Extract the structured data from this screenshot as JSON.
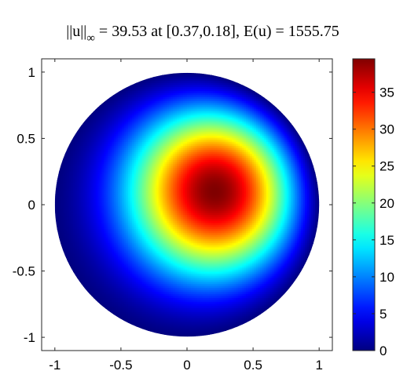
{
  "chart_data": {
    "type": "heatmap",
    "title": {
      "norm_symbol": "||u||",
      "norm_subscript": "∞",
      "rest": " = 39.53 at [0.37,0.18], E(u) = 1555.75"
    },
    "max_value": 39.53,
    "max_location": [
      0.37,
      0.18
    ],
    "energy": 1555.75,
    "domain": "unit disk",
    "colormap": "jet",
    "xlim": [
      -1.1,
      1.1
    ],
    "ylim": [
      -1.1,
      1.1
    ],
    "x_ticks": [
      "-1",
      "-0.5",
      "0",
      "0.5",
      "1"
    ],
    "x_tick_values": [
      -1,
      -0.5,
      0,
      0.5,
      1
    ],
    "y_ticks": [
      "1",
      "0.5",
      "0",
      "-0.5",
      "-1"
    ],
    "y_tick_values": [
      1,
      0.5,
      0,
      -0.5,
      -1
    ],
    "colorbar": {
      "range": [
        0,
        39.53
      ],
      "ticks": [
        "0",
        "5",
        "10",
        "15",
        "20",
        "25",
        "30",
        "35"
      ],
      "tick_values": [
        0,
        5,
        10,
        15,
        20,
        25,
        30,
        35
      ]
    },
    "grid": false
  }
}
